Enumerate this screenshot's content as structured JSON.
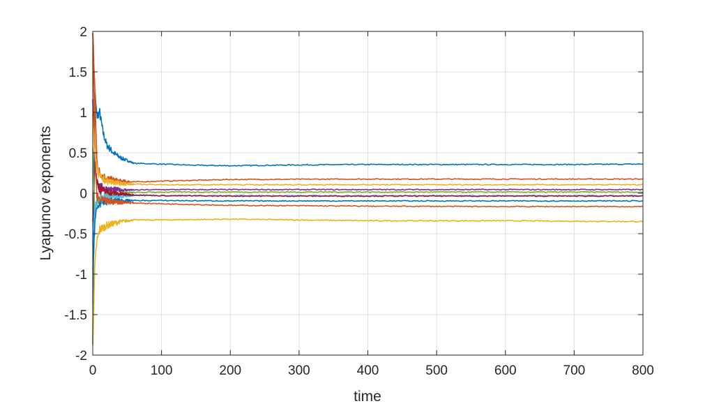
{
  "chart_data": {
    "type": "line",
    "xlabel": "time",
    "ylabel": "Lyapunov exponents",
    "xlim": [
      0,
      800
    ],
    "ylim": [
      -2,
      2
    ],
    "xticks": [
      0,
      100,
      200,
      300,
      400,
      500,
      600,
      700,
      800
    ],
    "yticks": [
      -2,
      -1.5,
      -1,
      -0.5,
      0,
      0.5,
      1,
      1.5,
      2
    ],
    "xtick_labels": [
      "0",
      "100",
      "200",
      "300",
      "400",
      "500",
      "600",
      "700",
      "800"
    ],
    "ytick_labels": [
      "-2",
      "-1.5",
      "-1",
      "-0.5",
      "0",
      "0.5",
      "1",
      "1.5",
      "2"
    ],
    "grid": true,
    "series": [
      {
        "color": "#0072BD",
        "x": [
          0,
          3,
          6,
          10,
          15,
          20,
          30,
          40,
          60,
          100,
          150,
          200,
          300,
          400,
          500,
          600,
          700,
          800
        ],
        "y": [
          -1.8,
          1.25,
          0.95,
          1.0,
          0.75,
          0.6,
          0.5,
          0.44,
          0.37,
          0.36,
          0.345,
          0.34,
          0.35,
          0.355,
          0.355,
          0.355,
          0.355,
          0.36
        ]
      },
      {
        "color": "#D95319",
        "x": [
          0,
          3,
          6,
          10,
          20,
          40,
          60,
          100,
          200,
          400,
          600,
          800
        ],
        "y": [
          2.0,
          1.3,
          0.4,
          0.25,
          0.18,
          0.15,
          0.14,
          0.15,
          0.17,
          0.175,
          0.175,
          0.175
        ]
      },
      {
        "color": "#EDB120",
        "x": [
          0,
          3,
          6,
          10,
          20,
          40,
          60,
          100,
          200,
          400,
          600,
          800
        ],
        "y": [
          -1.9,
          -0.9,
          -0.6,
          -0.45,
          -0.4,
          -0.35,
          -0.33,
          -0.33,
          -0.32,
          -0.34,
          -0.34,
          -0.35
        ]
      },
      {
        "color": "#7E2F8E",
        "x": [
          0,
          3,
          6,
          10,
          20,
          40,
          60,
          100,
          200,
          400,
          600,
          800
        ],
        "y": [
          -0.4,
          0.3,
          0.15,
          0.08,
          0.05,
          0.04,
          0.04,
          0.045,
          0.045,
          0.045,
          0.045,
          0.045
        ]
      },
      {
        "color": "#77AC30",
        "x": [
          0,
          3,
          6,
          10,
          20,
          40,
          60,
          100,
          200,
          400,
          600,
          800
        ],
        "y": [
          0.5,
          -0.25,
          -0.1,
          -0.05,
          -0.02,
          0.0,
          0.01,
          0.015,
          0.015,
          0.015,
          0.015,
          0.015
        ]
      },
      {
        "color": "#4DBEEE",
        "x": [
          0,
          3,
          6,
          10,
          20,
          40,
          60,
          100,
          200,
          400,
          600,
          800
        ],
        "y": [
          -0.6,
          -0.2,
          -0.08,
          -0.05,
          -0.04,
          -0.035,
          -0.03,
          -0.03,
          -0.03,
          -0.03,
          -0.03,
          -0.03
        ]
      },
      {
        "color": "#A2142F",
        "x": [
          0,
          3,
          6,
          10,
          20,
          40,
          60,
          100,
          200,
          400,
          600,
          800
        ],
        "y": [
          1.2,
          0.4,
          0.15,
          0.05,
          0.02,
          -0.01,
          -0.02,
          -0.03,
          -0.035,
          -0.035,
          -0.035,
          -0.035
        ]
      },
      {
        "color": "#0072BD",
        "x": [
          0,
          3,
          6,
          10,
          20,
          40,
          60,
          100,
          200,
          400,
          600,
          800
        ],
        "y": [
          -1.0,
          -0.35,
          -0.2,
          -0.12,
          -0.1,
          -0.09,
          -0.09,
          -0.09,
          -0.095,
          -0.095,
          -0.095,
          -0.095
        ]
      },
      {
        "color": "#D95319",
        "x": [
          0,
          3,
          6,
          10,
          20,
          40,
          60,
          100,
          200,
          400,
          600,
          800
        ],
        "y": [
          2.0,
          0.6,
          -0.05,
          -0.08,
          -0.1,
          -0.11,
          -0.12,
          -0.13,
          -0.15,
          -0.16,
          -0.165,
          -0.165
        ]
      },
      {
        "color": "#EDB120",
        "x": [
          0,
          3,
          6,
          10,
          20,
          40,
          60,
          100,
          200,
          400,
          600,
          800
        ],
        "y": [
          0.9,
          0.5,
          0.3,
          0.2,
          0.15,
          0.12,
          0.11,
          0.105,
          0.105,
          0.105,
          0.105,
          0.105
        ]
      }
    ]
  }
}
